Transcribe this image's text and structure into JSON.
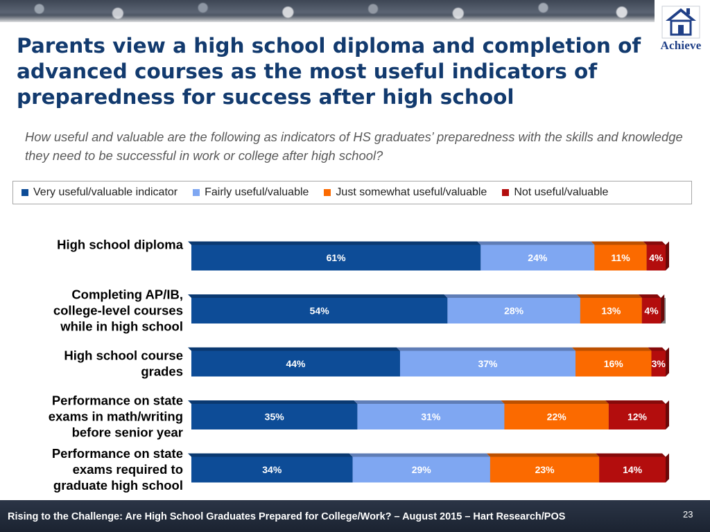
{
  "header": {
    "title": "Parents view a high school diploma and completion of advanced courses as the most useful indicators of preparedness for success after high school",
    "subtitle": "How useful and valuable are the following as indicators of HS graduates’  preparedness with the skills and knowledge they need to be successful in work or college after high school?",
    "logo_text": "Achieve"
  },
  "chart_data": {
    "type": "bar",
    "orientation": "horizontal",
    "stacked": true,
    "unit": "%",
    "xlim": [
      0,
      100
    ],
    "legend_position": "top",
    "categories": [
      [
        "High school diploma"
      ],
      [
        "Completing AP/IB,",
        "college-level courses",
        "while in high school"
      ],
      [
        "High school course",
        "grades"
      ],
      [
        "Performance on state",
        "exams in math/writing",
        "before senior year"
      ],
      [
        "Performance on state",
        "exams required to",
        "graduate high school"
      ]
    ],
    "series": [
      {
        "name": "Very useful/valuable indicator",
        "color": "#0d4c97",
        "label_color": "#ffffff",
        "values": [
          61,
          54,
          44,
          35,
          34
        ]
      },
      {
        "name": "Fairly useful/valuable",
        "color": "#7fa7f2",
        "label_color": "#ffffff",
        "values": [
          24,
          28,
          37,
          31,
          29
        ]
      },
      {
        "name": "Just somewhat useful/valuable",
        "color": "#fb6a00",
        "label_color": "#ffffff",
        "values": [
          11,
          13,
          16,
          22,
          23
        ]
      },
      {
        "name": "Not useful/valuable",
        "color": "#b30d0d",
        "label_color": "#ffffff",
        "values": [
          4,
          4,
          3,
          12,
          14
        ]
      }
    ]
  },
  "footer": {
    "source": "Rising to the Challenge:  Are High School Graduates Prepared for College/Work? – August 2015 – Hart Research/POS",
    "page_number": "23"
  }
}
